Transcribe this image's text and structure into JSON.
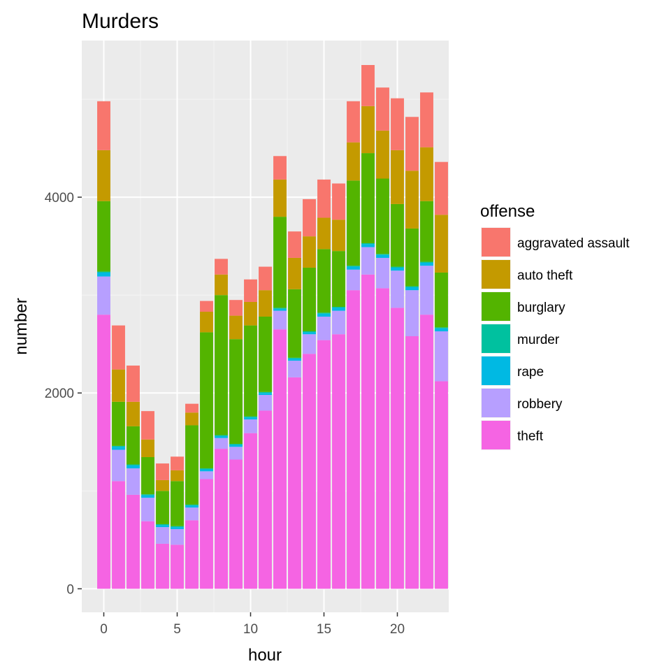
{
  "chart_data": {
    "type": "bar",
    "stacked": true,
    "title": "Murders",
    "xlabel": "hour",
    "ylabel": "number",
    "xlim": [
      -1.5,
      23.5
    ],
    "ylim": [
      -240,
      5600
    ],
    "x_ticks": [
      0,
      5,
      10,
      15,
      20
    ],
    "x_tick_labels": [
      "0",
      "5",
      "10",
      "15",
      "20"
    ],
    "y_ticks": [
      0,
      2000,
      4000
    ],
    "y_tick_labels": [
      "0",
      "2000",
      "4000"
    ],
    "grid": true,
    "legend": {
      "title": "offense",
      "position": "right"
    },
    "categories": [
      0,
      1,
      2,
      3,
      4,
      5,
      6,
      7,
      8,
      9,
      10,
      11,
      12,
      13,
      14,
      15,
      16,
      17,
      18,
      19,
      20,
      21,
      22,
      23
    ],
    "series": [
      {
        "name": "theft",
        "color": "#F564E3",
        "values": [
          2800,
          1100,
          960,
          690,
          460,
          450,
          700,
          1120,
          1430,
          1320,
          1590,
          1820,
          2650,
          2160,
          2400,
          2540,
          2600,
          3050,
          3210,
          3070,
          2870,
          2580,
          2800,
          2120
        ]
      },
      {
        "name": "robbery",
        "color": "#B79FFF",
        "values": [
          390,
          320,
          270,
          240,
          170,
          160,
          130,
          80,
          110,
          130,
          140,
          160,
          190,
          170,
          200,
          240,
          240,
          210,
          280,
          310,
          380,
          470,
          500,
          510
        ]
      },
      {
        "name": "rape",
        "color": "#00B9E3",
        "values": [
          40,
          30,
          30,
          25,
          20,
          20,
          20,
          20,
          20,
          20,
          20,
          20,
          20,
          20,
          20,
          30,
          30,
          30,
          30,
          30,
          30,
          30,
          30,
          30
        ]
      },
      {
        "name": "murder",
        "color": "#00C19F",
        "values": [
          10,
          10,
          10,
          10,
          10,
          10,
          10,
          10,
          10,
          10,
          10,
          10,
          10,
          10,
          10,
          10,
          10,
          10,
          10,
          10,
          10,
          10,
          10,
          10
        ]
      },
      {
        "name": "burglary",
        "color": "#53B400",
        "values": [
          720,
          450,
          390,
          380,
          340,
          460,
          810,
          1390,
          1430,
          1070,
          930,
          770,
          930,
          700,
          650,
          650,
          570,
          870,
          920,
          770,
          640,
          590,
          620,
          560
        ]
      },
      {
        "name": "auto theft",
        "color": "#C49A00",
        "values": [
          520,
          330,
          250,
          180,
          110,
          110,
          130,
          210,
          210,
          240,
          240,
          270,
          380,
          320,
          320,
          320,
          320,
          390,
          480,
          490,
          550,
          590,
          550,
          590
        ]
      },
      {
        "name": "aggravated assault",
        "color": "#F8766D",
        "values": [
          500,
          450,
          370,
          290,
          170,
          140,
          90,
          110,
          160,
          160,
          230,
          240,
          240,
          270,
          380,
          390,
          370,
          420,
          420,
          440,
          530,
          550,
          560,
          540
        ]
      }
    ]
  }
}
